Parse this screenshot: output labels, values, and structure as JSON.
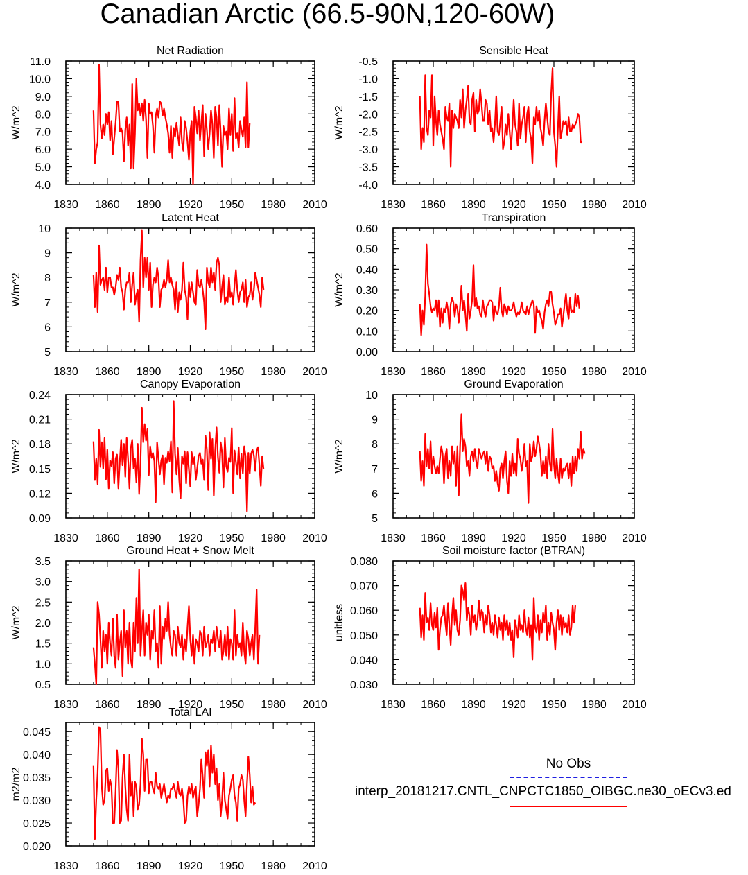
{
  "title": "Canadian Arctic (66.5-90N,120-60W)",
  "legend": {
    "obs_label": "No Obs",
    "obs_color": "#1f1fe0",
    "model_label": "interp_20181217.CNTL_CNPCTC1850_OIBGC.ne30_oECv3.ed",
    "model_color": "#ff0000"
  },
  "chart_data": [
    {
      "type": "line",
      "title": "Net Radiation",
      "ylabel": "W/m^2",
      "xlim": [
        1830,
        2010
      ],
      "ylim": [
        4.0,
        11.0
      ],
      "x_ticks": [
        "1830",
        "1860",
        "1890",
        "1920",
        "1950",
        "1980",
        "2010"
      ],
      "y_ticks": [
        "4.0",
        "5.0",
        "6.0",
        "7.0",
        "8.0",
        "9.0",
        "10.0",
        "11.0"
      ],
      "x_start": 1850,
      "values": [
        8.2,
        5.2,
        6.0,
        6.4,
        10.8,
        7.4,
        6.6,
        7.4,
        6.8,
        8.0,
        7.4,
        8.1,
        6.5,
        7.6,
        5.7,
        6.6,
        7.5,
        8.7,
        8.7,
        7.0,
        7.2,
        6.9,
        5.3,
        7.1,
        7.8,
        6.2,
        7.4,
        4.9,
        9.7,
        4.9,
        6.9,
        10.0,
        8.2,
        8.6,
        7.9,
        8.6,
        7.6,
        8.8,
        7.7,
        5.5,
        8.6,
        8.0,
        8.1,
        7.3,
        5.8,
        7.9,
        8.3,
        7.8,
        8.7,
        8.6,
        7.9,
        8.3,
        7.8,
        7.4,
        6.9,
        5.8,
        7.3,
        5.5,
        7.2,
        6.7,
        7.5,
        6.8,
        6.2,
        7.8,
        6.4,
        5.9,
        7.6,
        7.2,
        6.4,
        5.4,
        7.0,
        7.6,
        4.0,
        8.4,
        7.8,
        6.9,
        8.2,
        6.5,
        7.5,
        8.5,
        5.6,
        8.0,
        7.1,
        6.0,
        6.9,
        8.2,
        7.4,
        5.5,
        8.4,
        7.8,
        6.2,
        8.5,
        6.9,
        5.0,
        7.3,
        6.8,
        7.0,
        6.0,
        8.3,
        6.8,
        8.0,
        5.9,
        8.9,
        6.6,
        6.9,
        6.1,
        7.6,
        7.1,
        6.7,
        7.8,
        6.1,
        9.8,
        6.1,
        7.5
      ]
    },
    {
      "type": "line",
      "title": "Sensible Heat",
      "ylabel": "W/m^2",
      "xlim": [
        1830,
        2010
      ],
      "ylim": [
        -4.0,
        -0.5
      ],
      "x_ticks": [
        "1830",
        "1860",
        "1890",
        "1920",
        "1950",
        "1980",
        "2010"
      ],
      "y_ticks": [
        "-4.0",
        "-3.5",
        "-3.0",
        "-2.5",
        "-2.0",
        "-1.5",
        "-1.0",
        "-0.5"
      ],
      "x_start": 1850,
      "values": [
        -1.5,
        -3.0,
        -2.4,
        -2.8,
        -0.9,
        -2.4,
        -2.6,
        -1.9,
        -2.1,
        -0.9,
        -2.9,
        -1.5,
        -2.2,
        -2.6,
        -1.9,
        -2.3,
        -2.5,
        -2.7,
        -3.0,
        -1.8,
        -2.1,
        -2.2,
        -1.7,
        -3.5,
        -1.9,
        -2.4,
        -2.0,
        -2.1,
        -2.2,
        -2.4,
        -1.6,
        -2.1,
        -1.3,
        -2.4,
        -1.9,
        -1.6,
        -1.2,
        -2.2,
        -2.3,
        -1.6,
        -1.4,
        -2.5,
        -1.6,
        -2.0,
        -1.9,
        -1.3,
        -1.7,
        -2.2,
        -2.2,
        -1.6,
        -1.7,
        -2.3,
        -1.9,
        -2.5,
        -2.4,
        -2.8,
        -2.3,
        -1.5,
        -2.5,
        -2.6,
        -2.2,
        -1.8,
        -3.0,
        -2.8,
        -2.3,
        -2.6,
        -2.0,
        -2.5,
        -3.0,
        -2.4,
        -1.6,
        -2.3,
        -2.5,
        -2.9,
        -1.7,
        -2.7,
        -2.3,
        -2.1,
        -1.8,
        -2.8,
        -2.0,
        -1.8,
        -2.5,
        -2.7,
        -3.4,
        -2.1,
        -2.3,
        -1.8,
        -2.2,
        -1.9,
        -2.4,
        -2.6,
        -2.9,
        -2.2,
        -1.7,
        -2.1,
        -2.5,
        -2.6,
        -1.4,
        -0.7,
        -2.5,
        -2.9,
        -3.5,
        -2.4,
        -1.5,
        -2.7,
        -2.5,
        -2.2,
        -2.3,
        -2.2,
        -2.6,
        -2.1,
        -2.5,
        -2.5,
        -2.3,
        -2.4,
        -2.3,
        -2.2,
        -2.0,
        -2.1,
        -2.8,
        -2.8
      ]
    },
    {
      "type": "line",
      "title": "Latent Heat",
      "ylabel": "W/m^2",
      "xlim": [
        1830,
        2010
      ],
      "ylim": [
        5,
        10
      ],
      "x_ticks": [
        "1830",
        "1860",
        "1890",
        "1920",
        "1950",
        "1980",
        "2010"
      ],
      "y_ticks": [
        "5",
        "6",
        "7",
        "8",
        "9",
        "10"
      ],
      "x_start": 1850,
      "values": [
        8.1,
        6.8,
        8.2,
        6.6,
        9.3,
        7.7,
        7.9,
        8.0,
        7.5,
        8.4,
        7.4,
        8.0,
        8.0,
        7.6,
        7.6,
        7.3,
        7.6,
        8.1,
        7.9,
        8.4,
        7.6,
        7.4,
        6.7,
        7.5,
        7.8,
        7.8,
        8.2,
        7.0,
        7.7,
        8.2,
        6.9,
        7.3,
        7.5,
        6.2,
        8.7,
        9.9,
        7.6,
        8.8,
        8.0,
        8.8,
        7.5,
        8.6,
        6.8,
        7.7,
        8.0,
        7.8,
        8.4,
        8.0,
        6.8,
        7.5,
        7.6,
        7.9,
        7.6,
        7.9,
        8.7,
        7.8,
        8.0,
        7.7,
        7.5,
        6.7,
        7.8,
        6.6,
        7.4,
        7.1,
        7.5,
        8.6,
        7.5,
        7.2,
        6.3,
        7.8,
        7.2,
        7.8,
        7.4,
        7.0,
        6.9,
        8.3,
        7.7,
        7.6,
        7.9,
        7.5,
        7.0,
        5.9,
        8.4,
        7.8,
        7.6,
        8.4,
        7.8,
        8.2,
        7.5,
        8.6,
        8.8,
        8.5,
        7.0,
        7.6,
        8.1,
        6.9,
        7.2,
        7.0,
        8.0,
        7.2,
        7.4,
        6.9,
        7.7,
        8.3,
        7.5,
        7.0,
        7.4,
        7.5,
        7.8,
        7.0,
        7.9,
        6.8,
        7.2,
        7.3,
        7.8,
        7.1,
        7.5,
        8.2,
        7.9,
        7.6,
        7.3,
        6.8,
        8.0,
        7.5
      ]
    },
    {
      "type": "line",
      "title": "Transpiration",
      "ylabel": "W/m^2",
      "xlim": [
        1830,
        2010
      ],
      "ylim": [
        0.0,
        0.6
      ],
      "x_ticks": [
        "1830",
        "1860",
        "1890",
        "1920",
        "1950",
        "1980",
        "2010"
      ],
      "y_ticks": [
        "0.00",
        "0.10",
        "0.20",
        "0.30",
        "0.40",
        "0.50",
        "0.60"
      ],
      "x_start": 1850,
      "values": [
        0.23,
        0.08,
        0.2,
        0.13,
        0.27,
        0.52,
        0.33,
        0.28,
        0.22,
        0.19,
        0.21,
        0.2,
        0.25,
        0.17,
        0.25,
        0.12,
        0.21,
        0.14,
        0.21,
        0.19,
        0.24,
        0.2,
        0.11,
        0.23,
        0.26,
        0.24,
        0.17,
        0.23,
        0.21,
        0.14,
        0.22,
        0.32,
        0.2,
        0.25,
        0.18,
        0.1,
        0.28,
        0.16,
        0.2,
        0.25,
        0.42,
        0.22,
        0.26,
        0.21,
        0.22,
        0.18,
        0.17,
        0.25,
        0.2,
        0.17,
        0.22,
        0.23,
        0.25,
        0.25,
        0.24,
        0.15,
        0.22,
        0.19,
        0.18,
        0.22,
        0.31,
        0.2,
        0.17,
        0.23,
        0.21,
        0.18,
        0.22,
        0.2,
        0.2,
        0.21,
        0.24,
        0.2,
        0.17,
        0.19,
        0.18,
        0.2,
        0.24,
        0.2,
        0.19,
        0.18,
        0.22,
        0.18,
        0.21,
        0.23,
        0.25,
        0.23,
        0.09,
        0.22,
        0.19,
        0.2,
        0.17,
        0.15,
        0.11,
        0.19,
        0.23,
        0.25,
        0.22,
        0.29,
        0.29,
        0.23,
        0.19,
        0.13,
        0.15,
        0.18,
        0.18,
        0.21,
        0.12,
        0.17,
        0.23,
        0.28,
        0.2,
        0.16,
        0.26,
        0.19,
        0.2,
        0.19,
        0.28,
        0.22,
        0.27,
        0.21
      ]
    },
    {
      "type": "line",
      "title": "Canopy Evaporation",
      "ylabel": "W/m^2",
      "xlim": [
        1830,
        2010
      ],
      "ylim": [
        0.09,
        0.24
      ],
      "x_ticks": [
        "1830",
        "1860",
        "1890",
        "1920",
        "1950",
        "1980",
        "2010"
      ],
      "y_ticks": [
        "0.09",
        "0.12",
        "0.15",
        "0.18",
        "0.21",
        "0.24"
      ],
      "x_start": 1850,
      "values": [
        0.183,
        0.136,
        0.162,
        0.131,
        0.197,
        0.152,
        0.182,
        0.15,
        0.187,
        0.137,
        0.173,
        0.126,
        0.16,
        0.153,
        0.17,
        0.132,
        0.162,
        0.167,
        0.126,
        0.158,
        0.185,
        0.154,
        0.18,
        0.14,
        0.187,
        0.162,
        0.126,
        0.175,
        0.185,
        0.15,
        0.162,
        0.133,
        0.18,
        0.119,
        0.157,
        0.224,
        0.182,
        0.204,
        0.184,
        0.198,
        0.142,
        0.177,
        0.163,
        0.169,
        0.159,
        0.109,
        0.182,
        0.162,
        0.143,
        0.16,
        0.166,
        0.131,
        0.163,
        0.157,
        0.171,
        0.159,
        0.183,
        0.121,
        0.232,
        0.168,
        0.143,
        0.175,
        0.136,
        0.114,
        0.165,
        0.156,
        0.171,
        0.132,
        0.17,
        0.149,
        0.128,
        0.17,
        0.155,
        0.164,
        0.136,
        0.15,
        0.165,
        0.169,
        0.156,
        0.161,
        0.136,
        0.19,
        0.173,
        0.124,
        0.194,
        0.162,
        0.186,
        0.117,
        0.172,
        0.2,
        0.164,
        0.145,
        0.182,
        0.169,
        0.127,
        0.187,
        0.153,
        0.146,
        0.163,
        0.158,
        0.199,
        0.12,
        0.172,
        0.158,
        0.143,
        0.176,
        0.138,
        0.168,
        0.144,
        0.177,
        0.165,
        0.098,
        0.169,
        0.144,
        0.168,
        0.173,
        0.166,
        0.147,
        0.172,
        0.176,
        0.154,
        0.129,
        0.165,
        0.149
      ]
    },
    {
      "type": "line",
      "title": "Ground Evaporation",
      "ylabel": "W/m^2",
      "xlim": [
        1830,
        2010
      ],
      "ylim": [
        5,
        10
      ],
      "x_ticks": [
        "1830",
        "1860",
        "1890",
        "1920",
        "1950",
        "1980",
        "2010"
      ],
      "y_ticks": [
        "5",
        "6",
        "7",
        "8",
        "9",
        "10"
      ],
      "x_start": 1850,
      "values": [
        7.7,
        6.5,
        7.3,
        6.3,
        8.4,
        7.1,
        7.8,
        7.0,
        8.1,
        6.8,
        7.5,
        7.1,
        6.8,
        7.1,
        6.8,
        7.4,
        7.9,
        7.6,
        6.4,
        7.5,
        7.8,
        6.6,
        7.3,
        6.7,
        7.9,
        7.2,
        7.7,
        6.3,
        7.9,
        5.9,
        7.9,
        9.2,
        7.7,
        8.2,
        7.9,
        7.1,
        7.3,
        6.7,
        7.5,
        7.7,
        7.3,
        7.8,
        7.3,
        7.0,
        7.8,
        7.6,
        7.4,
        7.6,
        7.7,
        7.2,
        7.7,
        6.9,
        7.5,
        7.4,
        7.0,
        7.1,
        6.5,
        6.9,
        6.4,
        6.1,
        7.0,
        7.2,
        6.6,
        7.3,
        7.7,
        6.5,
        6.0,
        7.3,
        6.7,
        7.6,
        6.8,
        7.2,
        6.7,
        8.2,
        7.6,
        7.4,
        6.9,
        7.3,
        8.0,
        7.1,
        7.3,
        5.6,
        8.0,
        7.3,
        7.5,
        8.1,
        7.5,
        7.8,
        8.3,
        8.0,
        7.6,
        6.7,
        7.3,
        6.8,
        7.5,
        6.6,
        8.0,
        7.2,
        6.9,
        8.6,
        7.2,
        6.6,
        7.4,
        6.8,
        6.4,
        7.4,
        6.6,
        7.0,
        6.9,
        7.1,
        7.2,
        6.6,
        7.2,
        6.3,
        7.5,
        6.8,
        7.5,
        6.9,
        7.8,
        7.4,
        8.5,
        7.4,
        7.8,
        7.6
      ]
    },
    {
      "type": "line",
      "title": "Ground Heat + Snow Melt",
      "ylabel": "W/m^2",
      "xlim": [
        1830,
        2010
      ],
      "ylim": [
        0.5,
        3.5
      ],
      "x_ticks": [
        "1830",
        "1860",
        "1890",
        "1920",
        "1950",
        "1980",
        "2010"
      ],
      "y_ticks": [
        "0.5",
        "1.0",
        "1.5",
        "2.0",
        "2.5",
        "3.0",
        "3.5"
      ],
      "x_start": 1850,
      "values": [
        1.4,
        1.0,
        0.5,
        2.5,
        2.2,
        1.6,
        0.9,
        1.8,
        1.3,
        1.7,
        1.0,
        2.0,
        1.5,
        1.2,
        2.1,
        1.2,
        0.9,
        2.2,
        1.1,
        1.5,
        1.8,
        0.7,
        2.3,
        1.4,
        1.8,
        1.0,
        2.0,
        1.1,
        0.9,
        2.0,
        1.3,
        2.6,
        1.5,
        3.3,
        1.2,
        1.8,
        2.3,
        1.2,
        2.0,
        1.7,
        2.2,
        1.1,
        1.8,
        1.6,
        2.3,
        1.3,
        1.5,
        0.9,
        2.4,
        1.0,
        1.9,
        1.6,
        2.1,
        1.8,
        2.5,
        1.7,
        1.4,
        1.2,
        1.8,
        1.7,
        1.2,
        1.9,
        1.5,
        1.4,
        1.7,
        1.1,
        1.6,
        1.3,
        1.9,
        2.4,
        1.6,
        1.2,
        1.7,
        1.0,
        1.6,
        1.5,
        1.3,
        1.8,
        1.7,
        1.2,
        1.9,
        1.4,
        1.5,
        1.7,
        1.2,
        1.6,
        1.5,
        1.8,
        1.3,
        1.9,
        1.6,
        1.4,
        1.8,
        1.1,
        1.3,
        1.7,
        1.2,
        1.9,
        1.1,
        1.6,
        1.5,
        1.1,
        2.3,
        1.2,
        1.7,
        1.4,
        1.5,
        1.2,
        2.0,
        1.3,
        1.0,
        1.8,
        1.6,
        1.2,
        1.5,
        1.7,
        1.1,
        1.9,
        2.8,
        1.0,
        1.7
      ]
    },
    {
      "type": "line",
      "title": "Soil moisture factor (BTRAN)",
      "ylabel": "unitless",
      "xlim": [
        1830,
        2010
      ],
      "ylim": [
        0.03,
        0.08
      ],
      "x_ticks": [
        "1830",
        "1860",
        "1890",
        "1920",
        "1950",
        "1980",
        "2010"
      ],
      "y_ticks": [
        "0.030",
        "0.040",
        "0.050",
        "0.060",
        "0.070",
        "0.080"
      ],
      "x_start": 1850,
      "values": [
        0.061,
        0.049,
        0.058,
        0.048,
        0.067,
        0.055,
        0.057,
        0.052,
        0.063,
        0.054,
        0.052,
        0.059,
        0.053,
        0.061,
        0.044,
        0.052,
        0.057,
        0.058,
        0.062,
        0.055,
        0.05,
        0.063,
        0.054,
        0.046,
        0.058,
        0.065,
        0.054,
        0.06,
        0.052,
        0.05,
        0.056,
        0.07,
        0.068,
        0.064,
        0.071,
        0.056,
        0.061,
        0.058,
        0.05,
        0.062,
        0.055,
        0.058,
        0.052,
        0.056,
        0.064,
        0.056,
        0.06,
        0.059,
        0.051,
        0.058,
        0.054,
        0.062,
        0.058,
        0.051,
        0.055,
        0.05,
        0.058,
        0.054,
        0.049,
        0.057,
        0.052,
        0.055,
        0.048,
        0.058,
        0.052,
        0.056,
        0.05,
        0.055,
        0.048,
        0.052,
        0.041,
        0.056,
        0.053,
        0.049,
        0.058,
        0.052,
        0.054,
        0.051,
        0.06,
        0.053,
        0.05,
        0.057,
        0.049,
        0.054,
        0.04,
        0.065,
        0.053,
        0.051,
        0.058,
        0.048,
        0.056,
        0.051,
        0.059,
        0.055,
        0.062,
        0.048,
        0.055,
        0.05,
        0.059,
        0.055,
        0.052,
        0.044,
        0.055,
        0.06,
        0.052,
        0.058,
        0.05,
        0.057,
        0.053,
        0.055,
        0.051,
        0.058,
        0.05,
        0.053,
        0.062,
        0.055,
        0.062
      ]
    },
    {
      "type": "line",
      "title": "Total LAI",
      "ylabel": "m2/m2",
      "xlim": [
        1830,
        2010
      ],
      "ylim": [
        0.02,
        0.047
      ],
      "x_ticks": [
        "1830",
        "1860",
        "1890",
        "1920",
        "1950",
        "1980",
        "2010"
      ],
      "y_ticks": [
        "0.020",
        "0.025",
        "0.030",
        "0.035",
        "0.040",
        "0.045"
      ],
      "x_start": 1850,
      "values": [
        0.0375,
        0.0215,
        0.03,
        0.036,
        0.046,
        0.0455,
        0.033,
        0.029,
        0.03,
        0.0365,
        0.037,
        0.032,
        0.0345,
        0.033,
        0.025,
        0.025,
        0.032,
        0.041,
        0.037,
        0.025,
        0.0255,
        0.035,
        0.04,
        0.033,
        0.028,
        0.0255,
        0.04,
        0.031,
        0.034,
        0.0265,
        0.034,
        0.033,
        0.028,
        0.029,
        0.0335,
        0.0435,
        0.04,
        0.032,
        0.039,
        0.039,
        0.0315,
        0.034,
        0.034,
        0.0325,
        0.0315,
        0.036,
        0.033,
        0.0325,
        0.0335,
        0.0305,
        0.032,
        0.0335,
        0.0315,
        0.0295,
        0.031,
        0.0305,
        0.0325,
        0.0325,
        0.0335,
        0.032,
        0.0305,
        0.034,
        0.0315,
        0.031,
        0.0325,
        0.03,
        0.025,
        0.0255,
        0.031,
        0.033,
        0.0315,
        0.0335,
        0.0305,
        0.032,
        0.033,
        0.0265,
        0.029,
        0.0325,
        0.039,
        0.035,
        0.0305,
        0.0405,
        0.0375,
        0.041,
        0.033,
        0.042,
        0.036,
        0.04,
        0.0335,
        0.037,
        0.03,
        0.0335,
        0.0265,
        0.03,
        0.036,
        0.03,
        0.028,
        0.026,
        0.031,
        0.0325,
        0.0345,
        0.0355,
        0.031,
        0.0295,
        0.0255,
        0.0325,
        0.0335,
        0.0355,
        0.0345,
        0.03,
        0.0265,
        0.0335,
        0.0395,
        0.0355,
        0.0295,
        0.033,
        0.029,
        0.0295
      ]
    }
  ]
}
